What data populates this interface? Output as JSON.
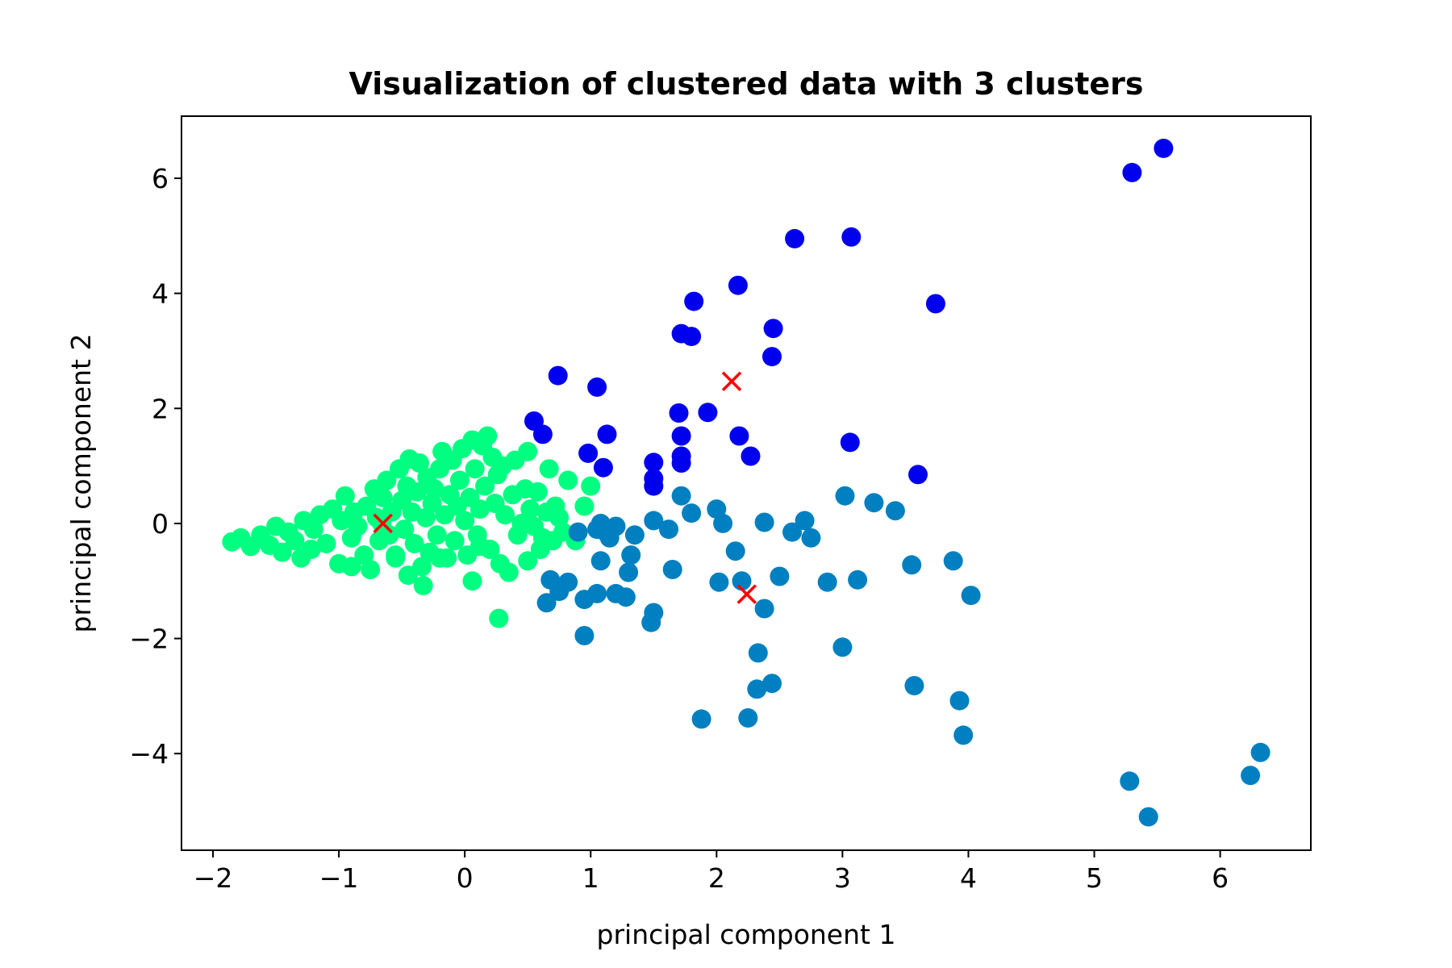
{
  "chart_data": {
    "type": "scatter",
    "title": "Visualization of clustered data with 3 clusters",
    "xlabel": "principal component 1",
    "ylabel": "principal component 2",
    "xlim": [
      -2.25,
      6.72
    ],
    "ylim": [
      -5.68,
      7.08
    ],
    "xticks": [
      -2,
      -1,
      0,
      1,
      2,
      3,
      4,
      5,
      6
    ],
    "yticks": [
      -4,
      -2,
      0,
      2,
      4,
      6
    ],
    "xtick_labels": [
      "−2",
      "−1",
      "0",
      "1",
      "2",
      "3",
      "4",
      "5",
      "6"
    ],
    "ytick_labels": [
      "−4",
      "−2",
      "0",
      "2",
      "4",
      "6"
    ],
    "grid": false,
    "legend": "none",
    "series": [
      {
        "color": "#00ff80",
        "points": [
          [
            -1.85,
            -0.32
          ],
          [
            -1.78,
            -0.25
          ],
          [
            -1.7,
            -0.4
          ],
          [
            -1.62,
            -0.2
          ],
          [
            -1.55,
            -0.38
          ],
          [
            -1.5,
            -0.05
          ],
          [
            -1.45,
            -0.5
          ],
          [
            -1.4,
            -0.15
          ],
          [
            -1.35,
            -0.3
          ],
          [
            -1.3,
            -0.6
          ],
          [
            -1.28,
            0.05
          ],
          [
            -1.22,
            -0.45
          ],
          [
            -1.2,
            -0.1
          ],
          [
            -1.15,
            0.15
          ],
          [
            -1.1,
            -0.35
          ],
          [
            -1.05,
            0.25
          ],
          [
            -1.0,
            -0.7
          ],
          [
            -0.98,
            0.05
          ],
          [
            -0.95,
            0.48
          ],
          [
            -0.9,
            -0.25
          ],
          [
            -0.88,
            0.2
          ],
          [
            -0.85,
            -0.05
          ],
          [
            -0.8,
            -0.55
          ],
          [
            -0.78,
            0.3
          ],
          [
            -0.75,
            -0.8
          ],
          [
            -0.72,
            0.6
          ],
          [
            -0.7,
            0.1
          ],
          [
            -0.68,
            -0.3
          ],
          [
            -0.65,
            0.45
          ],
          [
            -0.62,
            0.75
          ],
          [
            -0.6,
            -0.2
          ],
          [
            -0.58,
            0.2
          ],
          [
            -0.55,
            -0.55
          ],
          [
            -0.52,
            0.95
          ],
          [
            -0.5,
            0.4
          ],
          [
            -0.48,
            -0.1
          ],
          [
            -0.46,
            0.65
          ],
          [
            -0.44,
            1.12
          ],
          [
            -0.42,
            0.2
          ],
          [
            -0.4,
            -0.35
          ],
          [
            -0.38,
            0.55
          ],
          [
            -0.36,
            1.05
          ],
          [
            -0.34,
            -0.75
          ],
          [
            -0.33,
            -1.08
          ],
          [
            -0.31,
            0.1
          ],
          [
            -0.3,
            0.8
          ],
          [
            -0.28,
            -0.5
          ],
          [
            -0.26,
            0.35
          ],
          [
            -0.24,
            0.6
          ],
          [
            -0.22,
            -0.2
          ],
          [
            -0.2,
            0.95
          ],
          [
            -0.18,
            1.25
          ],
          [
            -0.16,
            0.15
          ],
          [
            -0.14,
            -0.6
          ],
          [
            -0.12,
            0.5
          ],
          [
            -0.1,
            1.1
          ],
          [
            -0.08,
            -0.3
          ],
          [
            -0.06,
            0.3
          ],
          [
            -0.04,
            0.75
          ],
          [
            -0.02,
            1.3
          ],
          [
            0.0,
            0.05
          ],
          [
            0.02,
            -0.55
          ],
          [
            0.04,
            0.45
          ],
          [
            0.06,
            1.45
          ],
          [
            0.08,
            0.95
          ],
          [
            0.1,
            -0.2
          ],
          [
            0.12,
            0.25
          ],
          [
            0.14,
            1.35
          ],
          [
            0.16,
            0.65
          ],
          [
            0.18,
            1.52
          ],
          [
            0.2,
            -0.45
          ],
          [
            0.22,
            1.15
          ],
          [
            0.24,
            0.35
          ],
          [
            0.26,
            0.85
          ],
          [
            0.28,
            -0.7
          ],
          [
            0.3,
            1.0
          ],
          [
            0.32,
            0.15
          ],
          [
            0.35,
            -0.85
          ],
          [
            0.38,
            0.5
          ],
          [
            0.4,
            1.1
          ],
          [
            0.42,
            -0.2
          ],
          [
            0.45,
            0.0
          ],
          [
            0.48,
            0.6
          ],
          [
            0.5,
            -0.65
          ],
          [
            0.52,
            0.25
          ],
          [
            0.55,
            -0.05
          ],
          [
            0.58,
            0.55
          ],
          [
            0.6,
            -0.45
          ],
          [
            0.62,
            -0.25
          ],
          [
            0.65,
            0.2
          ],
          [
            0.67,
            0.95
          ],
          [
            0.7,
            -0.3
          ],
          [
            0.72,
            0.3
          ],
          [
            0.75,
            0.1
          ],
          [
            0.78,
            -0.15
          ],
          [
            0.82,
            0.75
          ],
          [
            0.88,
            -0.3
          ],
          [
            1.0,
            0.65
          ],
          [
            0.95,
            0.3
          ],
          [
            -0.55,
            -0.6
          ],
          [
            -0.2,
            -0.6
          ],
          [
            0.06,
            -1.0
          ],
          [
            0.27,
            -1.65
          ],
          [
            0.5,
            1.25
          ],
          [
            -0.9,
            -0.75
          ],
          [
            -0.45,
            -0.9
          ],
          [
            0.12,
            -0.4
          ],
          [
            -0.66,
            0.0
          ]
        ]
      },
      {
        "color": "#0080c0",
        "points": [
          [
            0.9,
            -0.15
          ],
          [
            1.05,
            -0.1
          ],
          [
            1.08,
            0.0
          ],
          [
            1.12,
            -0.15
          ],
          [
            1.15,
            -0.25
          ],
          [
            1.2,
            -0.05
          ],
          [
            1.32,
            -0.55
          ],
          [
            1.35,
            -0.2
          ],
          [
            1.3,
            -0.85
          ],
          [
            1.5,
            0.05
          ],
          [
            1.62,
            -0.1
          ],
          [
            1.65,
            -0.8
          ],
          [
            1.72,
            0.48
          ],
          [
            1.8,
            0.18
          ],
          [
            2.0,
            0.25
          ],
          [
            2.05,
            0.0
          ],
          [
            2.15,
            -0.48
          ],
          [
            2.2,
            -1.0
          ],
          [
            2.38,
            0.02
          ],
          [
            2.5,
            -0.92
          ],
          [
            2.6,
            -0.15
          ],
          [
            2.7,
            0.05
          ],
          [
            2.75,
            -0.25
          ],
          [
            2.88,
            -1.02
          ],
          [
            3.02,
            0.48
          ],
          [
            3.12,
            -0.98
          ],
          [
            3.25,
            0.36
          ],
          [
            3.42,
            0.22
          ],
          [
            3.55,
            -0.72
          ],
          [
            3.88,
            -0.65
          ],
          [
            4.02,
            -1.25
          ],
          [
            0.68,
            -0.98
          ],
          [
            0.75,
            -1.18
          ],
          [
            0.82,
            -1.02
          ],
          [
            0.95,
            -1.32
          ],
          [
            1.05,
            -1.22
          ],
          [
            1.2,
            -1.22
          ],
          [
            1.28,
            -1.28
          ],
          [
            0.65,
            -1.38
          ],
          [
            0.95,
            -1.95
          ],
          [
            1.08,
            -0.65
          ],
          [
            1.5,
            -1.55
          ],
          [
            1.48,
            -1.72
          ],
          [
            1.88,
            -3.4
          ],
          [
            2.02,
            -1.02
          ],
          [
            2.38,
            -1.48
          ],
          [
            2.33,
            -2.25
          ],
          [
            2.32,
            -2.88
          ],
          [
            2.44,
            -2.78
          ],
          [
            2.25,
            -3.38
          ],
          [
            3.0,
            -2.15
          ],
          [
            3.57,
            -2.82
          ],
          [
            3.93,
            -3.08
          ],
          [
            3.96,
            -3.68
          ],
          [
            5.28,
            -4.48
          ],
          [
            5.43,
            -5.1
          ],
          [
            6.24,
            -4.38
          ],
          [
            6.32,
            -3.98
          ]
        ]
      },
      {
        "color": "#0000ee",
        "points": [
          [
            5.3,
            6.1
          ],
          [
            5.55,
            6.52
          ],
          [
            2.62,
            4.95
          ],
          [
            3.07,
            4.98
          ],
          [
            2.17,
            4.14
          ],
          [
            1.82,
            3.86
          ],
          [
            1.72,
            3.3
          ],
          [
            1.8,
            3.25
          ],
          [
            2.45,
            3.39
          ],
          [
            2.44,
            2.9
          ],
          [
            3.74,
            3.82
          ],
          [
            0.74,
            2.57
          ],
          [
            1.05,
            2.37
          ],
          [
            1.7,
            1.92
          ],
          [
            1.93,
            1.93
          ],
          [
            0.55,
            1.78
          ],
          [
            0.62,
            1.55
          ],
          [
            1.13,
            1.55
          ],
          [
            1.72,
            1.52
          ],
          [
            2.18,
            1.52
          ],
          [
            3.06,
            1.41
          ],
          [
            0.98,
            1.22
          ],
          [
            1.1,
            0.97
          ],
          [
            1.5,
            1.06
          ],
          [
            1.72,
            1.05
          ],
          [
            2.27,
            1.17
          ],
          [
            1.72,
            1.17
          ],
          [
            1.5,
            0.78
          ],
          [
            1.5,
            0.65
          ],
          [
            3.6,
            0.85
          ]
        ]
      }
    ],
    "centroids": {
      "color": "#ff0000",
      "points": [
        [
          -0.65,
          0.0
        ],
        [
          2.12,
          2.47
        ],
        [
          2.24,
          -1.23
        ]
      ]
    }
  }
}
